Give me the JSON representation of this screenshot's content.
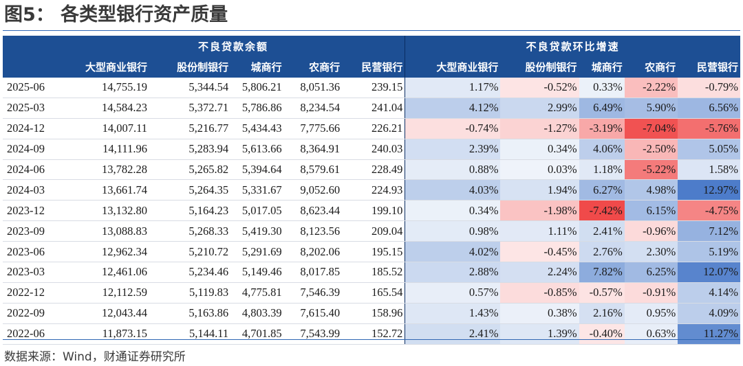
{
  "title": "图5：  各类型银行资产质量",
  "source": "数据来源：Wind，财通证券研究所",
  "colors": {
    "header_bg": "#1d4f94",
    "header_text": "#ffffff",
    "positive": "#3f72c6",
    "negative": "#ef3a3a"
  },
  "table": {
    "group_headers": [
      "不良贷款余额",
      "不良贷款环比增速"
    ],
    "sub_headers": [
      "大型商业银行",
      "股份制银行",
      "城商行",
      "农商行",
      "民营银行"
    ]
  },
  "chart_data": {
    "type": "table",
    "columns": [
      "大型商业银行",
      "股份制银行",
      "城商行",
      "农商行",
      "民营银行"
    ],
    "rows": [
      {
        "date": "2025-06",
        "balance": [
          "14,755.19",
          "5,344.54",
          "5,806.21",
          "8,051.36",
          "239.15"
        ],
        "growth": [
          "1.17%",
          "-0.52%",
          "0.33%",
          "-2.22%",
          "-0.79%"
        ],
        "g": [
          1.17,
          -0.52,
          0.33,
          -2.22,
          -0.79
        ]
      },
      {
        "date": "2025-03",
        "balance": [
          "14,584.23",
          "5,372.71",
          "5,786.86",
          "8,234.54",
          "241.04"
        ],
        "growth": [
          "4.12%",
          "2.99%",
          "6.49%",
          "5.90%",
          "6.56%"
        ],
        "g": [
          4.12,
          2.99,
          6.49,
          5.9,
          6.56
        ]
      },
      {
        "date": "2024-12",
        "balance": [
          "14,007.11",
          "5,216.77",
          "5,434.43",
          "7,775.66",
          "226.21"
        ],
        "growth": [
          "-0.74%",
          "-1.27%",
          "-3.19%",
          "-7.04%",
          "-5.76%"
        ],
        "g": [
          -0.74,
          -1.27,
          -3.19,
          -7.04,
          -5.76
        ]
      },
      {
        "date": "2024-09",
        "balance": [
          "14,111.96",
          "5,283.94",
          "5,613.66",
          "8,364.91",
          "240.03"
        ],
        "growth": [
          "2.39%",
          "0.34%",
          "4.06%",
          "-2.50%",
          "5.05%"
        ],
        "g": [
          2.39,
          0.34,
          4.06,
          -2.5,
          5.05
        ]
      },
      {
        "date": "2024-06",
        "balance": [
          "13,782.28",
          "5,265.82",
          "5,394.64",
          "8,579.61",
          "228.49"
        ],
        "growth": [
          "0.88%",
          "0.03%",
          "1.18%",
          "-5.22%",
          "1.58%"
        ],
        "g": [
          0.88,
          0.03,
          1.18,
          -5.22,
          1.58
        ]
      },
      {
        "date": "2024-03",
        "balance": [
          "13,661.74",
          "5,264.35",
          "5,331.67",
          "9,052.60",
          "224.93"
        ],
        "growth": [
          "4.03%",
          "1.94%",
          "6.27%",
          "4.98%",
          "12.97%"
        ],
        "g": [
          4.03,
          1.94,
          6.27,
          4.98,
          12.97
        ]
      },
      {
        "date": "2023-12",
        "balance": [
          "13,132.80",
          "5,164.23",
          "5,017.05",
          "8,623.44",
          "199.10"
        ],
        "growth": [
          "0.34%",
          "-1.98%",
          "-7.42%",
          "6.15%",
          "-4.75%"
        ],
        "g": [
          0.34,
          -1.98,
          -7.42,
          6.15,
          -4.75
        ]
      },
      {
        "date": "2023-09",
        "balance": [
          "13,088.83",
          "5,268.33",
          "5,419.30",
          "8,123.56",
          "209.04"
        ],
        "growth": [
          "0.98%",
          "1.11%",
          "2.41%",
          "-0.96%",
          "7.12%"
        ],
        "g": [
          0.98,
          1.11,
          2.41,
          -0.96,
          7.12
        ]
      },
      {
        "date": "2023-06",
        "balance": [
          "12,962.34",
          "5,210.72",
          "5,291.69",
          "8,202.06",
          "195.15"
        ],
        "growth": [
          "4.02%",
          "-0.45%",
          "2.76%",
          "2.30%",
          "5.19%"
        ],
        "g": [
          4.02,
          -0.45,
          2.76,
          2.3,
          5.19
        ]
      },
      {
        "date": "2023-03",
        "balance": [
          "12,461.06",
          "5,234.46",
          "5,149.46",
          "8,017.85",
          "185.52"
        ],
        "growth": [
          "2.88%",
          "2.24%",
          "7.82%",
          "6.25%",
          "12.07%"
        ],
        "g": [
          2.88,
          2.24,
          7.82,
          6.25,
          12.07
        ]
      },
      {
        "date": "2022-12",
        "balance": [
          "12,112.59",
          "5,119.83",
          "4,775.81",
          "7,546.39",
          "165.54"
        ],
        "growth": [
          "0.57%",
          "-0.85%",
          "-0.57%",
          "-0.91%",
          "4.14%"
        ],
        "g": [
          0.57,
          -0.85,
          -0.57,
          -0.91,
          4.14
        ]
      },
      {
        "date": "2022-09",
        "balance": [
          "12,043.44",
          "5,163.86",
          "4,803.39",
          "7,615.40",
          "158.96"
        ],
        "growth": [
          "1.43%",
          "0.38%",
          "2.16%",
          "0.95%",
          "4.09%"
        ],
        "g": [
          1.43,
          0.38,
          2.16,
          0.95,
          4.09
        ]
      },
      {
        "date": "2022-06",
        "balance": [
          "11,873.15",
          "5,144.11",
          "4,701.85",
          "7,543.99",
          "152.72"
        ],
        "growth": [
          "2.41%",
          "1.39%",
          "-0.40%",
          "0.63%",
          "11.27%"
        ],
        "g": [
          2.41,
          1.39,
          -0.4,
          0.63,
          11.27
        ]
      }
    ]
  }
}
